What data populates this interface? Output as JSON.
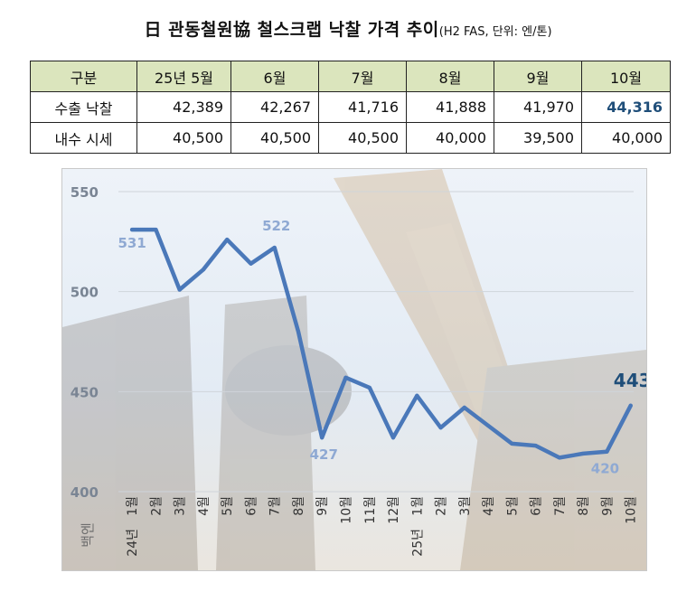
{
  "title": {
    "main": "日 관동철원協 철스크랩 낙찰 가격 추이",
    "sub": "(H2 FAS, 단위: 엔/톤)"
  },
  "table": {
    "headers": [
      "구분",
      "25년 5월",
      "6월",
      "7월",
      "8월",
      "9월",
      "10월"
    ],
    "rows": [
      {
        "label": "수출 낙찰",
        "values": [
          "42,389",
          "42,267",
          "41,716",
          "41,888",
          "41,970",
          "44,316"
        ]
      },
      {
        "label": "내수 시세",
        "values": [
          "40,500",
          "40,500",
          "40,500",
          "40,000",
          "39,500",
          "40,000"
        ]
      }
    ]
  },
  "chart_data": {
    "type": "line",
    "ylabel": "백엔",
    "ylim": [
      400,
      550
    ],
    "yticks": [
      400,
      450,
      500,
      550
    ],
    "x": [
      "1월",
      "2월",
      "3월",
      "4월",
      "5월",
      "6월",
      "7월",
      "8월",
      "9월",
      "10월",
      "11월",
      "12월",
      "1월",
      "2월",
      "3월",
      "4월",
      "5월",
      "6월",
      "7월",
      "8월",
      "9월",
      "10월"
    ],
    "year_labels": [
      {
        "index": 0,
        "text": "24년"
      },
      {
        "index": 12,
        "text": "25년"
      }
    ],
    "series": [
      {
        "values": [
          531,
          531,
          501,
          511,
          526,
          514,
          522,
          480,
          427,
          457,
          452,
          427,
          448,
          432,
          442,
          433,
          424,
          423,
          417,
          419,
          420,
          443
        ]
      }
    ],
    "annotations": [
      {
        "index": 0,
        "text": "531"
      },
      {
        "index": 6,
        "text": "522"
      },
      {
        "index": 8,
        "text": "427"
      },
      {
        "index": 20,
        "text": "420"
      },
      {
        "index": 21,
        "text": "443"
      }
    ],
    "grid": true,
    "colors": {
      "line": "#4a78b9",
      "label": "#8fa9d3",
      "last_label": "#1f4e79",
      "grid": "#cfd4da"
    }
  }
}
